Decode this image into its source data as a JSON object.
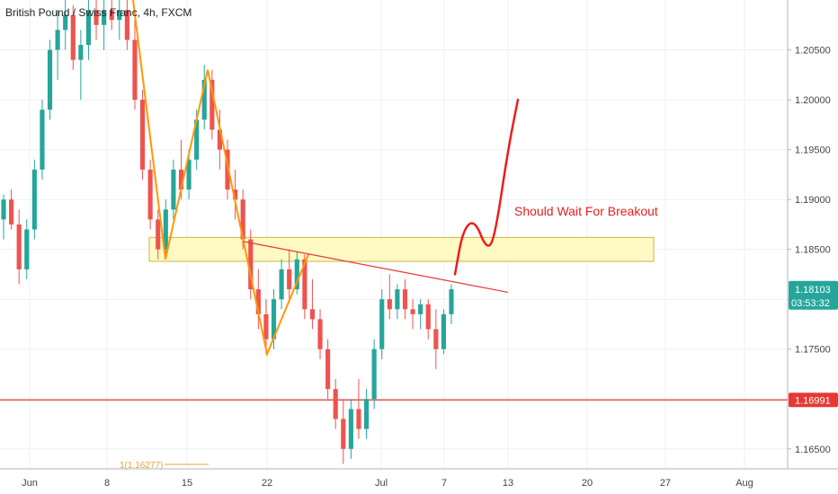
{
  "chart_data": {
    "type": "candlestick",
    "title": "British Pound / Swiss Franc, 4h, FXCM",
    "x_axis": {
      "labels": [
        "Jun",
        "8",
        "15",
        "22",
        "Jul",
        "7",
        "13",
        "20",
        "27",
        "Aug"
      ]
    },
    "y_axis": {
      "range": [
        1.163,
        1.21
      ],
      "tick_labels": [
        "1.16500",
        "1.17000",
        "1.17500",
        "1.18000",
        "1.18500",
        "1.19000",
        "1.19500",
        "1.20000",
        "1.20500"
      ]
    },
    "last_price": {
      "value": "1.18103",
      "countdown": "03:53:32"
    },
    "horizontal_line": {
      "price": 1.16991,
      "label": "1.16991"
    },
    "resistance_zone": {
      "low": 1.1838,
      "high": 1.1862
    },
    "annotation": "Should Wait For Breakout",
    "fib_label": "1(1.16277)",
    "colors": {
      "up": "#26a69a",
      "down": "#ef5350",
      "zig_zag": "#ff9800",
      "projection": "#e91e1e",
      "zone_fill": "#fff9c4",
      "zone_stroke": "#c8b64a",
      "line_red": "#e53935",
      "grid": "#eef0f3"
    },
    "zig_zag": [
      1.21,
      1.184,
      1.203,
      1.1745,
      1.1845
    ],
    "trendline": [
      1.1858,
      1.1807
    ],
    "projection_path": [
      1.1825,
      1.187,
      1.188,
      1.185,
      1.186,
      1.195,
      1.2
    ],
    "candles": [
      [
        1.188,
        1.1905,
        1.186,
        1.19
      ],
      [
        1.19,
        1.191,
        1.187,
        1.1875
      ],
      [
        1.1875,
        1.189,
        1.1815,
        1.183
      ],
      [
        1.183,
        1.188,
        1.182,
        1.187
      ],
      [
        1.187,
        1.194,
        1.186,
        1.193
      ],
      [
        1.193,
        1.2,
        1.192,
        1.199
      ],
      [
        1.199,
        1.206,
        1.198,
        1.205
      ],
      [
        1.205,
        1.209,
        1.202,
        1.207
      ],
      [
        1.207,
        1.21,
        1.205,
        1.2085
      ],
      [
        1.2085,
        1.2095,
        1.203,
        1.204
      ],
      [
        1.204,
        1.207,
        1.2,
        1.2055
      ],
      [
        1.2055,
        1.21,
        1.204,
        1.209
      ],
      [
        1.209,
        1.21,
        1.206,
        1.2075
      ],
      [
        1.2075,
        1.21,
        1.205,
        1.209
      ],
      [
        1.209,
        1.21,
        1.207,
        1.208
      ],
      [
        1.208,
        1.21,
        1.206,
        1.209
      ],
      [
        1.209,
        1.21,
        1.205,
        1.206
      ],
      [
        1.206,
        1.208,
        1.199,
        1.2
      ],
      [
        1.2,
        1.201,
        1.192,
        1.193
      ],
      [
        1.193,
        1.194,
        1.187,
        1.188
      ],
      [
        1.188,
        1.189,
        1.184,
        1.185
      ],
      [
        1.185,
        1.19,
        1.1845,
        1.189
      ],
      [
        1.189,
        1.194,
        1.188,
        1.193
      ],
      [
        1.193,
        1.196,
        1.19,
        1.191
      ],
      [
        1.191,
        1.195,
        1.19,
        1.194
      ],
      [
        1.194,
        1.199,
        1.193,
        1.198
      ],
      [
        1.198,
        1.2035,
        1.197,
        1.202
      ],
      [
        1.202,
        1.203,
        1.196,
        1.197
      ],
      [
        1.197,
        1.199,
        1.193,
        1.195
      ],
      [
        1.195,
        1.196,
        1.19,
        1.191
      ],
      [
        1.191,
        1.193,
        1.188,
        1.19
      ],
      [
        1.19,
        1.191,
        1.185,
        1.186
      ],
      [
        1.186,
        1.187,
        1.18,
        1.181
      ],
      [
        1.181,
        1.183,
        1.177,
        1.1785
      ],
      [
        1.1785,
        1.18,
        1.1745,
        1.176
      ],
      [
        1.176,
        1.181,
        1.175,
        1.18
      ],
      [
        1.18,
        1.184,
        1.179,
        1.183
      ],
      [
        1.183,
        1.185,
        1.18,
        1.181
      ],
      [
        1.181,
        1.1848,
        1.1805,
        1.184
      ],
      [
        1.184,
        1.1845,
        1.178,
        1.179
      ],
      [
        1.179,
        1.182,
        1.177,
        1.178
      ],
      [
        1.178,
        1.179,
        1.174,
        1.175
      ],
      [
        1.175,
        1.176,
        1.17,
        1.171
      ],
      [
        1.171,
        1.172,
        1.167,
        1.168
      ],
      [
        1.168,
        1.17,
        1.1635,
        1.165
      ],
      [
        1.165,
        1.17,
        1.164,
        1.169
      ],
      [
        1.169,
        1.172,
        1.166,
        1.167
      ],
      [
        1.167,
        1.171,
        1.166,
        1.17
      ],
      [
        1.17,
        1.176,
        1.169,
        1.175
      ],
      [
        1.175,
        1.181,
        1.174,
        1.18
      ],
      [
        1.18,
        1.1825,
        1.178,
        1.179
      ],
      [
        1.179,
        1.1815,
        1.178,
        1.181
      ],
      [
        1.181,
        1.182,
        1.178,
        1.179
      ],
      [
        1.179,
        1.18,
        1.177,
        1.1785
      ],
      [
        1.1785,
        1.18,
        1.177,
        1.1795
      ],
      [
        1.1795,
        1.18,
        1.176,
        1.177
      ],
      [
        1.177,
        1.179,
        1.173,
        1.175
      ],
      [
        1.175,
        1.179,
        1.1745,
        1.1785
      ],
      [
        1.1785,
        1.1815,
        1.1775,
        1.181
      ]
    ]
  }
}
